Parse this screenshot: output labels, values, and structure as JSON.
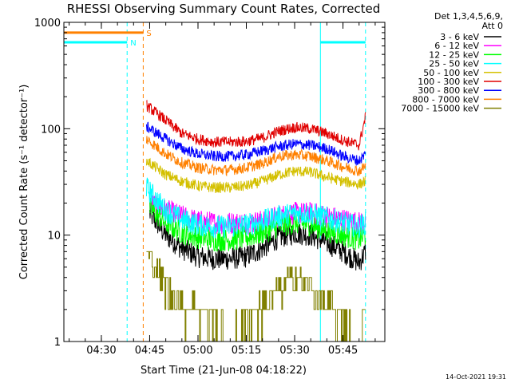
{
  "chart_data": {
    "type": "line",
    "title": "RHESSI Observing Summary Count Rates, Corrected",
    "xlabel": "Start Time (21-Jun-08 04:18:22)",
    "ylabel": "Corrected Count Rate (s⁻¹ detector⁻¹)",
    "y_scale": "log",
    "ylim": [
      1,
      1000
    ],
    "y_ticks": [
      {
        "value": 1,
        "label": "1"
      },
      {
        "value": 10,
        "label": "10"
      },
      {
        "value": 100,
        "label": "100"
      },
      {
        "value": 1000,
        "label": "1000"
      }
    ],
    "xlim": [
      "04:18:22",
      "05:58:00"
    ],
    "x_ticks": [
      "04:30",
      "04:45",
      "05:00",
      "05:15",
      "05:30",
      "05:45"
    ],
    "legend_header": [
      "Det 1,3,4,5,6,9,",
      "Att 0"
    ],
    "legend_position": "right",
    "series": [
      {
        "name": "3 - 6 keV",
        "color": "#000000",
        "points": [
          [
            "04:45",
            16
          ],
          [
            "04:50",
            10
          ],
          [
            "04:55",
            7.5
          ],
          [
            "05:00",
            6.3
          ],
          [
            "05:05",
            6
          ],
          [
            "05:10",
            6
          ],
          [
            "05:15",
            6.3
          ],
          [
            "05:20",
            7.5
          ],
          [
            "05:25",
            9.5
          ],
          [
            "05:30",
            10.5
          ],
          [
            "05:35",
            10
          ],
          [
            "05:40",
            8.5
          ],
          [
            "05:45",
            7
          ],
          [
            "05:50",
            5.5
          ],
          [
            "05:52",
            7
          ]
        ]
      },
      {
        "name": "6 - 12 keV",
        "color": "#ff00ff",
        "points": [
          [
            "04:45",
            20
          ],
          [
            "04:50",
            17
          ],
          [
            "04:55",
            15
          ],
          [
            "05:00",
            13.5
          ],
          [
            "05:05",
            13
          ],
          [
            "05:10",
            13
          ],
          [
            "05:15",
            13
          ],
          [
            "05:20",
            13.5
          ],
          [
            "05:25",
            15
          ],
          [
            "05:30",
            16
          ],
          [
            "05:35",
            16
          ],
          [
            "05:40",
            15
          ],
          [
            "05:45",
            14
          ],
          [
            "05:50",
            13
          ],
          [
            "05:52",
            14
          ]
        ]
      },
      {
        "name": "12 - 25 keV",
        "color": "#00ff00",
        "points": [
          [
            "04:45",
            18
          ],
          [
            "04:50",
            13
          ],
          [
            "04:55",
            10.5
          ],
          [
            "05:00",
            9.5
          ],
          [
            "05:05",
            9
          ],
          [
            "05:10",
            9
          ],
          [
            "05:15",
            9.5
          ],
          [
            "05:20",
            10.5
          ],
          [
            "05:25",
            12
          ],
          [
            "05:30",
            13
          ],
          [
            "05:35",
            12.5
          ],
          [
            "05:40",
            11
          ],
          [
            "05:45",
            10
          ],
          [
            "05:50",
            9
          ],
          [
            "05:52",
            10
          ]
        ]
      },
      {
        "name": "25 - 50 keV",
        "color": "#00ffff",
        "points": [
          [
            "04:44",
            28
          ],
          [
            "04:50",
            17
          ],
          [
            "04:55",
            14
          ],
          [
            "05:00",
            12.5
          ],
          [
            "05:05",
            12
          ],
          [
            "05:10",
            12
          ],
          [
            "05:15",
            12.5
          ],
          [
            "05:20",
            13.5
          ],
          [
            "05:25",
            15
          ],
          [
            "05:30",
            16
          ],
          [
            "05:35",
            16
          ],
          [
            "05:40",
            14.5
          ],
          [
            "05:45",
            13
          ],
          [
            "05:50",
            12
          ],
          [
            "05:52",
            13
          ]
        ]
      },
      {
        "name": "50 - 100 keV",
        "color": "#d4c000",
        "points": [
          [
            "04:44",
            50
          ],
          [
            "04:50",
            37
          ],
          [
            "04:55",
            32
          ],
          [
            "05:00",
            29
          ],
          [
            "05:05",
            28
          ],
          [
            "05:10",
            28
          ],
          [
            "05:15",
            29
          ],
          [
            "05:20",
            32
          ],
          [
            "05:25",
            37
          ],
          [
            "05:30",
            40
          ],
          [
            "05:35",
            39
          ],
          [
            "05:40",
            35
          ],
          [
            "05:45",
            32
          ],
          [
            "05:50",
            30
          ],
          [
            "05:52",
            32
          ]
        ]
      },
      {
        "name": "100 - 300 keV",
        "color": "#e00000",
        "points": [
          [
            "04:44",
            165
          ],
          [
            "04:50",
            120
          ],
          [
            "04:55",
            90
          ],
          [
            "05:00",
            80
          ],
          [
            "05:05",
            75
          ],
          [
            "05:10",
            75
          ],
          [
            "05:15",
            76
          ],
          [
            "05:20",
            82
          ],
          [
            "05:25",
            95
          ],
          [
            "05:30",
            103
          ],
          [
            "05:35",
            100
          ],
          [
            "05:40",
            90
          ],
          [
            "05:45",
            78
          ],
          [
            "05:50",
            70
          ],
          [
            "05:52",
            130
          ]
        ]
      },
      {
        "name": "300 - 800 keV",
        "color": "#0000ff",
        "points": [
          [
            "04:44",
            105
          ],
          [
            "04:50",
            80
          ],
          [
            "04:55",
            65
          ],
          [
            "05:00",
            58
          ],
          [
            "05:05",
            55
          ],
          [
            "05:10",
            55
          ],
          [
            "05:15",
            57
          ],
          [
            "05:20",
            62
          ],
          [
            "05:25",
            68
          ],
          [
            "05:30",
            72
          ],
          [
            "05:35",
            70
          ],
          [
            "05:40",
            65
          ],
          [
            "05:45",
            55
          ],
          [
            "05:50",
            50
          ],
          [
            "05:52",
            58
          ]
        ]
      },
      {
        "name": "800 - 7000 keV",
        "color": "#ff8000",
        "points": [
          [
            "04:44",
            80
          ],
          [
            "04:50",
            58
          ],
          [
            "04:55",
            48
          ],
          [
            "05:00",
            43
          ],
          [
            "05:05",
            41
          ],
          [
            "05:10",
            41
          ],
          [
            "05:15",
            43
          ],
          [
            "05:20",
            47
          ],
          [
            "05:25",
            55
          ],
          [
            "05:30",
            57
          ],
          [
            "05:35",
            55
          ],
          [
            "05:40",
            50
          ],
          [
            "05:45",
            44
          ],
          [
            "05:50",
            40
          ],
          [
            "05:52",
            45
          ]
        ]
      },
      {
        "name": "7000 - 15000 keV",
        "color": "#808000",
        "points": [
          [
            "04:44",
            7
          ],
          [
            "04:47",
            5
          ],
          [
            "04:50",
            3
          ],
          [
            "04:55",
            2
          ],
          [
            "05:00",
            2
          ],
          [
            "05:05",
            1.5
          ],
          [
            "05:10",
            1
          ],
          [
            "05:15",
            1.5
          ],
          [
            "05:20",
            2
          ],
          [
            "05:25",
            3
          ],
          [
            "05:30",
            4
          ],
          [
            "05:35",
            3
          ],
          [
            "05:40",
            2
          ],
          [
            "05:45",
            1.5
          ],
          [
            "05:50",
            1
          ],
          [
            "05:52",
            2
          ]
        ]
      }
    ],
    "flag_bars": [
      {
        "label": "S",
        "color": "#ff8000",
        "value": 800,
        "segments": [
          [
            "04:18:22",
            "04:43"
          ]
        ]
      },
      {
        "label": "N",
        "color": "#00ffff",
        "value": 650,
        "segments": [
          [
            "04:18:22",
            "04:38"
          ],
          [
            "05:38",
            "05:52"
          ]
        ]
      }
    ],
    "vertical_lines": [
      {
        "time": "04:38",
        "color": "#00ffff",
        "style": "dashed"
      },
      {
        "time": "04:43",
        "color": "#ff8000",
        "style": "dashed"
      },
      {
        "time": "05:38",
        "color": "#00ffff",
        "style": "solid"
      },
      {
        "time": "05:52",
        "color": "#00ffff",
        "style": "dashed"
      }
    ],
    "footer_text": "14-Oct-2021 19:31"
  }
}
